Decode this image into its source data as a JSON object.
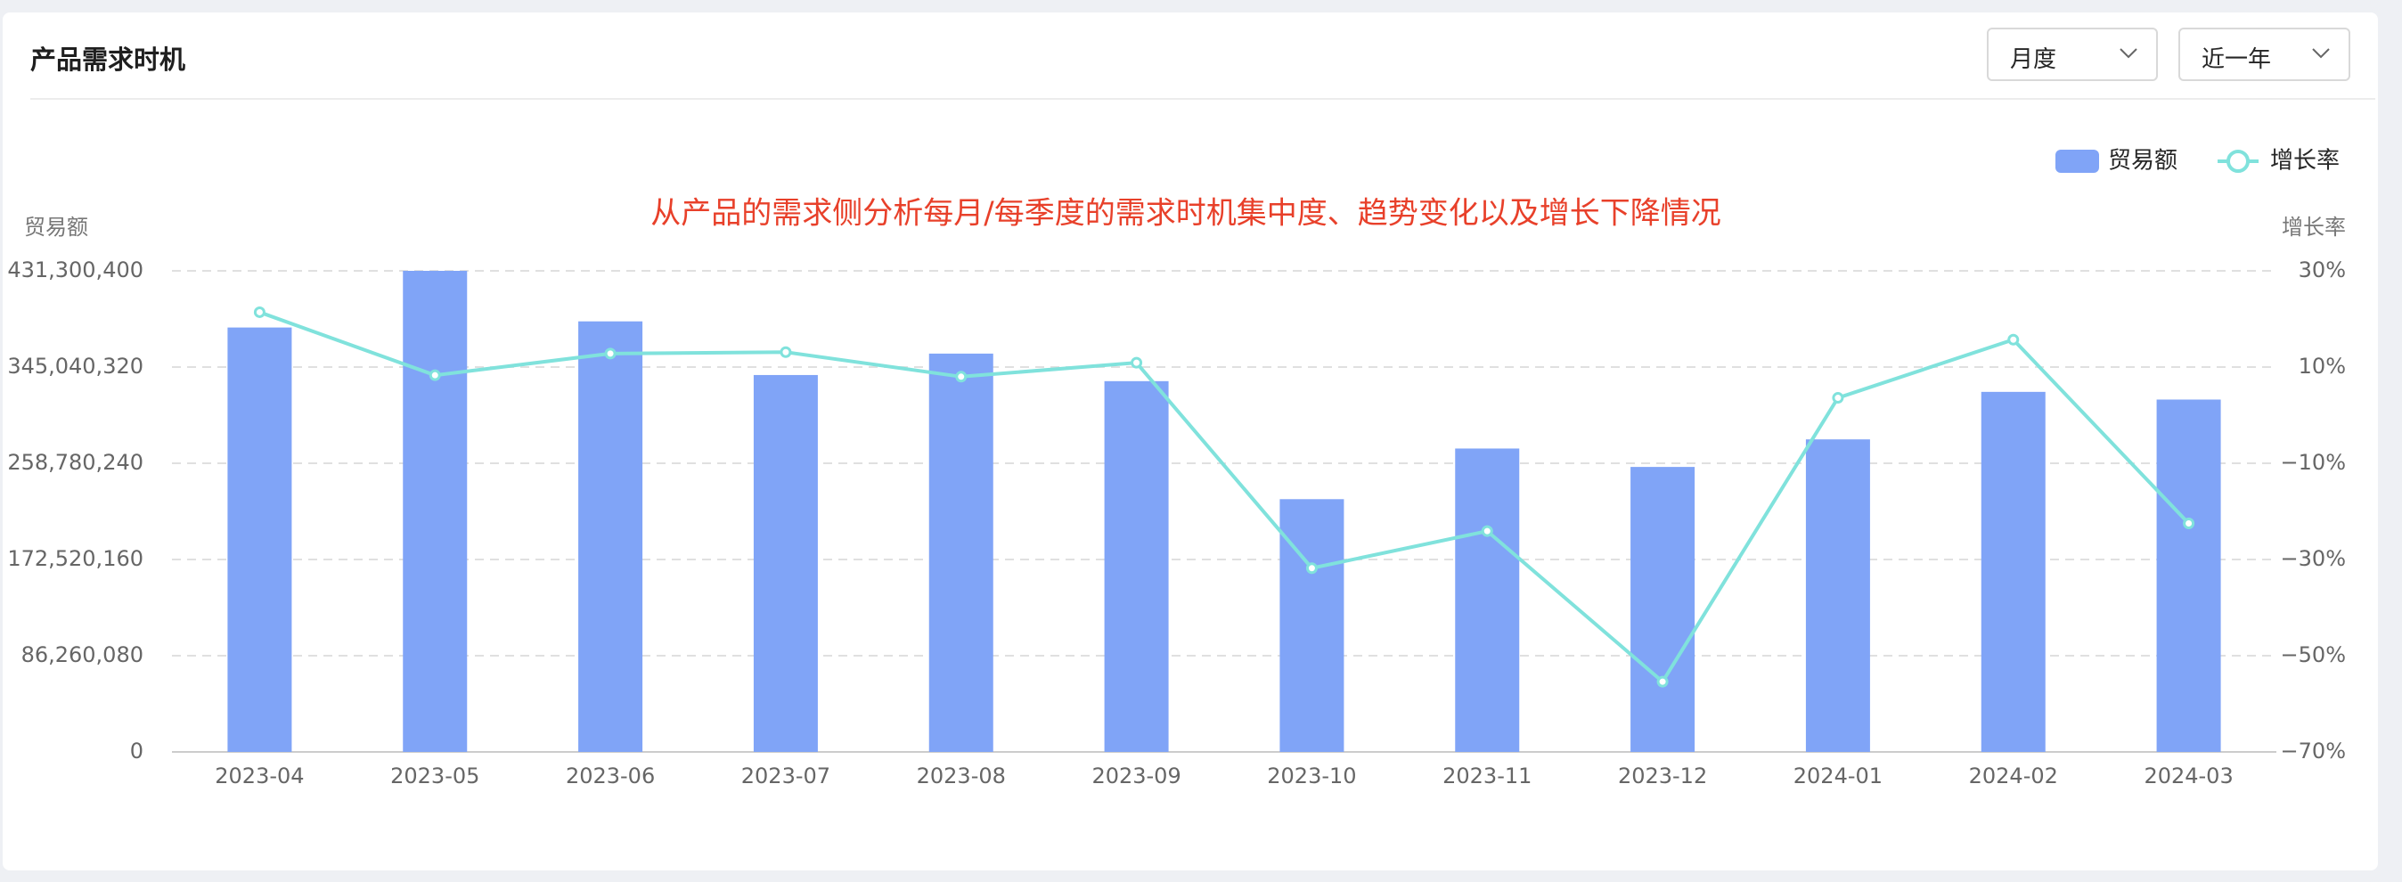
{
  "header": {
    "title": "产品需求时机",
    "filters": [
      "月度",
      "近一年"
    ]
  },
  "chart_data": {
    "type": "bar_line",
    "subtitle": "从产品的需求侧分析每月/每季度的需求时机集中度、趋势变化以及增长下降情况",
    "y_label": "贸易额",
    "y2_label": "增长率",
    "categories": [
      "2023-04",
      "2023-05",
      "2023-06",
      "2023-07",
      "2023-08",
      "2023-09",
      "2023-10",
      "2023-11",
      "2023-12",
      "2024-01",
      "2024-02",
      "2024-03"
    ],
    "series": [
      {
        "name": "贸易额",
        "type": "bar",
        "color": "#80a4f7",
        "values": [
          380500000,
          431300400,
          386000000,
          337900000,
          357100000,
          332400000,
          226600000,
          272000000,
          255500000,
          280200000,
          322800000,
          315900000
        ]
      },
      {
        "name": "增长率",
        "type": "line",
        "axis": "y2",
        "color": "#80e2dc",
        "values": [
          21.4,
          8.3,
          12.8,
          13.1,
          8.0,
          10.9,
          -31.8,
          -24.1,
          -55.4,
          3.6,
          15.7,
          -22.5
        ]
      }
    ],
    "ylim": [
      0,
      431300400
    ],
    "yticks": [
      0,
      {
        "value": 86260080,
        "label": "86,260,080"
      },
      {
        "value": 172520160,
        "label": "172,520,160"
      },
      {
        "value": 258780240,
        "label": "258,780,240"
      },
      {
        "value": 345040320,
        "label": "345,040,320"
      },
      {
        "value": 431300400,
        "label": "431,300,400"
      }
    ],
    "y2lim": [
      -70,
      30
    ],
    "y2ticks": [
      {
        "value": -70,
        "label": "−70%"
      },
      {
        "value": -50,
        "label": "−50%"
      },
      {
        "value": -30,
        "label": "−30%"
      },
      {
        "value": -10,
        "label": "−10%"
      },
      {
        "value": 10,
        "label": "10%"
      },
      {
        "value": 30,
        "label": "30%"
      }
    ],
    "grid": true,
    "legend": "top-right"
  }
}
